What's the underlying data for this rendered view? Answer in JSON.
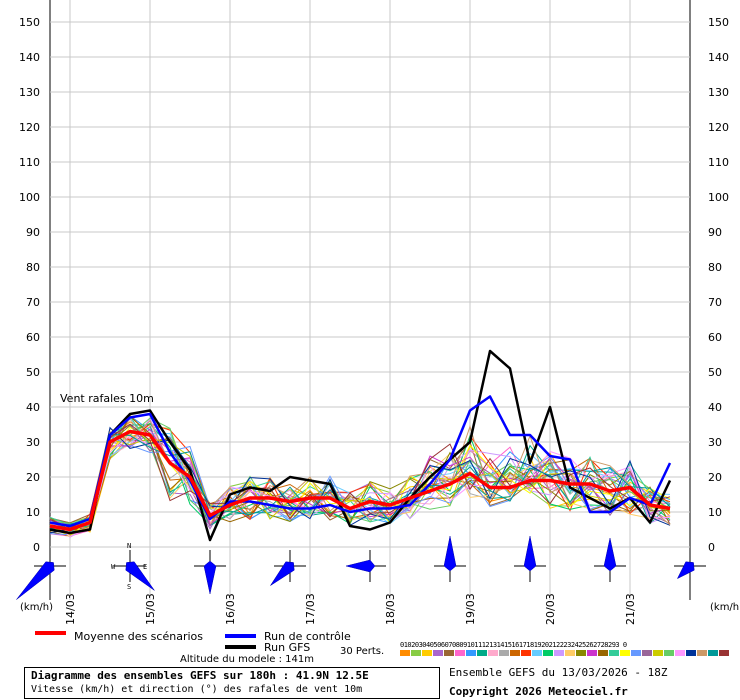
{
  "chart_data": {
    "type": "line",
    "annotation": "Vent rafales 10m",
    "y_ticks": [
      0,
      10,
      20,
      30,
      40,
      50,
      60,
      70,
      80,
      90,
      100,
      110,
      120,
      130,
      140,
      150
    ],
    "ylim": [
      0,
      150
    ],
    "unit_left": "(km/h)",
    "unit_right": "(km/h)",
    "x_range_hours": [
      0,
      180
    ],
    "x_ticks": [
      {
        "label": "14/03",
        "hour": 6
      },
      {
        "label": "15/03",
        "hour": 30
      },
      {
        "label": "16/03",
        "hour": 54
      },
      {
        "label": "17/03",
        "hour": 78
      },
      {
        "label": "18/03",
        "hour": 102
      },
      {
        "label": "19/03",
        "hour": 126
      },
      {
        "label": "20/03",
        "hour": 150
      },
      {
        "label": "21/03",
        "hour": 174
      }
    ],
    "grid": true,
    "series": [
      {
        "name": "Moyenne des scénarios",
        "color": "#ff0000",
        "x": [
          0,
          6,
          12,
          18,
          24,
          30,
          36,
          42,
          48,
          54,
          60,
          66,
          72,
          78,
          84,
          90,
          96,
          102,
          108,
          114,
          120,
          126,
          132,
          138,
          144,
          150,
          156,
          162,
          168,
          174,
          180,
          186
        ],
        "y": [
          6,
          5,
          7,
          30,
          33,
          32,
          24,
          20,
          9,
          12,
          14,
          14,
          13,
          14,
          14,
          11,
          13,
          12,
          14,
          16,
          18,
          21,
          17,
          17,
          19,
          19,
          18,
          18,
          16,
          17,
          12,
          11
        ]
      },
      {
        "name": "Run de contrôle",
        "color": "#0000ff",
        "x": [
          0,
          6,
          12,
          18,
          24,
          30,
          36,
          42,
          48,
          54,
          60,
          66,
          72,
          78,
          84,
          90,
          96,
          102,
          108,
          114,
          120,
          126,
          132,
          138,
          144,
          150,
          156,
          162,
          168,
          174,
          180,
          186
        ],
        "y": [
          7,
          6,
          8,
          32,
          37,
          38,
          27,
          19,
          8,
          13,
          13,
          12,
          11,
          11,
          12,
          10,
          11,
          11,
          12,
          18,
          25,
          39,
          43,
          32,
          32,
          26,
          25,
          10,
          10,
          14,
          12,
          24
        ]
      },
      {
        "name": "Run GFS",
        "color": "#000000",
        "x": [
          0,
          6,
          12,
          18,
          24,
          30,
          36,
          42,
          48,
          54,
          60,
          66,
          72,
          78,
          84,
          90,
          96,
          102,
          108,
          114,
          120,
          126,
          132,
          138,
          144,
          150,
          156,
          162,
          168,
          174,
          180,
          186
        ],
        "y": [
          5,
          4,
          5,
          32,
          38,
          39,
          30,
          22,
          2,
          15,
          17,
          16,
          20,
          19,
          18,
          6,
          5,
          7,
          14,
          20,
          25,
          30,
          56,
          51,
          24,
          40,
          17,
          14,
          11,
          14,
          7,
          19
        ]
      }
    ],
    "wind_direction_markers": [
      {
        "hour": 0,
        "dir": "sw",
        "length": 48
      },
      {
        "hour": 24,
        "dir": "se",
        "length": 35
      },
      {
        "hour": 48,
        "dir": "s",
        "length": 28
      },
      {
        "hour": 72,
        "dir": "sw",
        "length": 28
      },
      {
        "hour": 96,
        "dir": "w",
        "length": 24
      },
      {
        "hour": 120,
        "dir": "n",
        "length": 30
      },
      {
        "hour": 144,
        "dir": "n",
        "length": 30
      },
      {
        "hour": 168,
        "dir": "n",
        "length": 28
      },
      {
        "hour": 192,
        "dir": "sw",
        "length": 18
      }
    ],
    "compass_labels": {
      "n": "N",
      "s": "S",
      "e": "E",
      "w": "W"
    }
  },
  "legend": {
    "mean_label": "Moyenne des scénarios",
    "control_label": "Run de contrôle",
    "gfs_label": "Run GFS",
    "perts_label": "30 Perts.",
    "pert_numbers": "01020304050607080910111213141516171819202122232425262728293 0"
  },
  "pert_colors": [
    "#ff8c00",
    "#88cc44",
    "#ffcc00",
    "#aa66cc",
    "#996633",
    "#ff66cc",
    "#3399ff",
    "#00aa88",
    "#ffaacc",
    "#aaaaaa",
    "#cc6600",
    "#ff3300",
    "#66ccff",
    "#00cc66",
    "#cc99ff",
    "#ffcc66",
    "#888800",
    "#cc33cc",
    "#996600",
    "#33cc99",
    "#ffff00",
    "#6699ff",
    "#996699",
    "#cccc00",
    "#66cc66",
    "#ff99ff",
    "#003399",
    "#cc9966",
    "#009999",
    "#993333"
  ],
  "info": {
    "title": "Diagramme des ensembles GEFS sur 180h : 41.9N 12.5E",
    "subtitle": "Vitesse (km/h) et direction (°) des rafales de vent 10m",
    "altitude": "Altitude du modele : 141m",
    "ensemble_run": "Ensemble GEFS du 13/03/2026 - 18Z",
    "copyright": "Copyright 2026 Meteociel.fr"
  }
}
